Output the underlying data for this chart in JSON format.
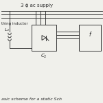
{
  "bg_color": "#f0f0eb",
  "line_color": "#2a2a2a",
  "title_text": "3 ϕ ac supply",
  "label_inductor": "thing inductor",
  "label_Ld": "$L_d$",
  "label_C2": "$C_2$",
  "caption": "asic scheme for a static Sch",
  "fig_width": 1.5,
  "fig_height": 1.5,
  "dpi": 100
}
